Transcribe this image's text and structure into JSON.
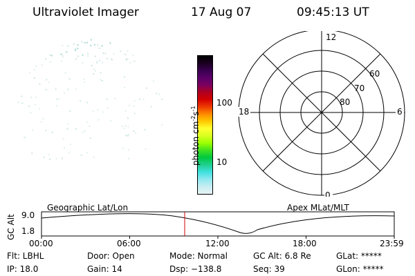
{
  "header": {
    "title": "Ultraviolet Imager",
    "date": "17 Aug 07",
    "time": "09:45:13 UT"
  },
  "colorbar": {
    "label": "photon cm",
    "label_sup1": "-2",
    "label_mid": "s",
    "label_sup2": "-1",
    "ticks": [
      "100",
      "10"
    ],
    "colors": [
      "#000000",
      "#1a0020",
      "#3a0050",
      "#5a0068",
      "#7a0060",
      "#b00020",
      "#d40000",
      "#ee3a00",
      "#ff8a00",
      "#ffc800",
      "#ffff30",
      "#d8ff20",
      "#9cff00",
      "#40e020",
      "#00c840",
      "#20d090",
      "#40e0e0",
      "#90e8f0",
      "#c8eef2",
      "#e8f2f4"
    ]
  },
  "polar": {
    "labels": {
      "top": "12",
      "bottom": "0",
      "left": "18",
      "right": "6"
    },
    "ring_labels": [
      "60",
      "70",
      "80"
    ]
  },
  "timeline": {
    "ylabel": "GC Alt",
    "left_header": "Geographic Lat/Lon",
    "right_header": "Apex MLat/MLT",
    "ytick_top": "9.0",
    "ytick_bottom": "1.8",
    "xticks": [
      "00:00",
      "06:00",
      "12:00",
      "18:00",
      "23:59"
    ],
    "marker_color": "#cc0000"
  },
  "info": {
    "flt": "Flt: LBHL",
    "ip": "IP: 18.0",
    "door": "Door: Open",
    "gain": "Gain: 14",
    "mode": "Mode: Normal",
    "dsp": "Dsp: −138.8",
    "gcalt": "GC Alt: 6.8 Re",
    "seq": "Seq: 39",
    "glat": "GLat: *****",
    "glon": "GLon: *****"
  }
}
